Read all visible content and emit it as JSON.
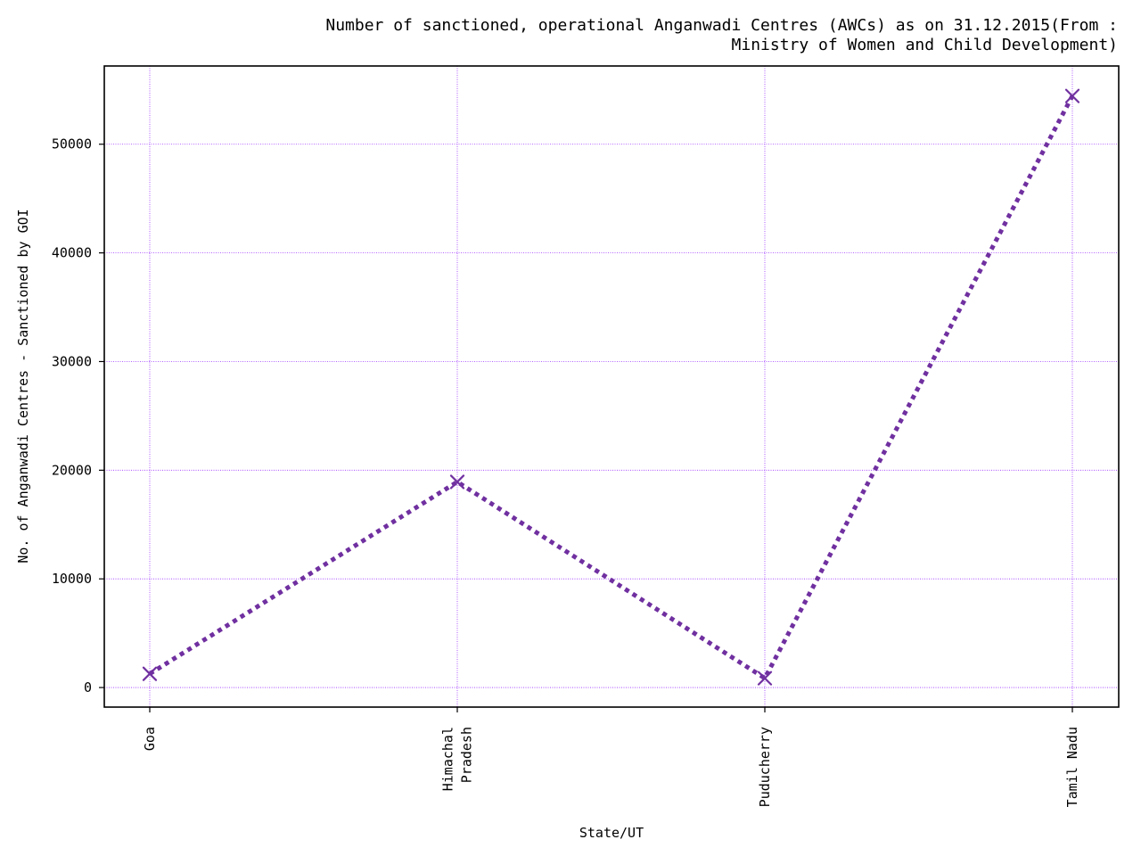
{
  "chart_data": {
    "type": "line",
    "title_lines": [
      "Number of sanctioned, operational Anganwadi Centres (AWCs) as on 31.12.2015(From :",
      "Ministry of Women and Child Development)"
    ],
    "xlabel": "State/UT",
    "ylabel": "No. of Anganwadi Centres - Sanctioned by GOI",
    "categories": [
      [
        "Goa"
      ],
      [
        "Himachal",
        "Pradesh"
      ],
      [
        "Puducherry"
      ],
      [
        "Tamil Nadu"
      ]
    ],
    "series": [
      {
        "values": [
          1262,
          18925,
          855,
          54439
        ]
      }
    ],
    "ylim": [
      -1800,
      57200
    ],
    "yticks": [
      0,
      10000,
      20000,
      30000,
      40000,
      50000
    ],
    "ytick_labels": [
      "0",
      "10000",
      "20000",
      "30000",
      "40000",
      "50000"
    ],
    "grid": true,
    "line_style": "dotted",
    "marker": "x",
    "colors": {
      "line": "#7030a0",
      "grid": "#9b30ff",
      "axis": "#000000"
    }
  }
}
